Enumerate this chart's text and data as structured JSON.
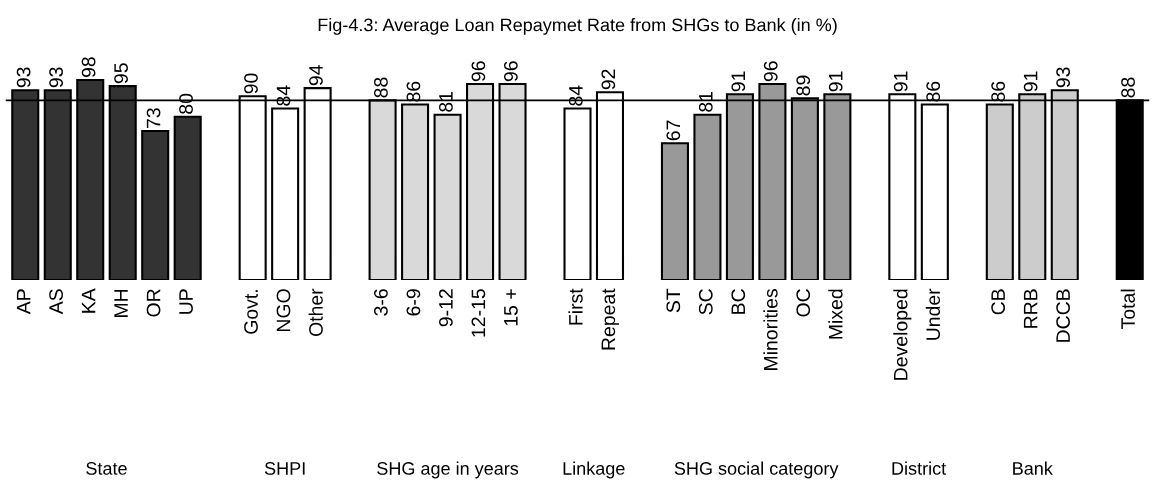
{
  "chart_data": {
    "type": "bar",
    "title": "Fig-4.3: Average Loan Repaymet Rate from SHGs to Bank (in %)",
    "categories": [
      "AP",
      "AS",
      "KA",
      "MH",
      "OR",
      "UP",
      null,
      "Govt.",
      "NGO",
      "Other",
      null,
      "3-6",
      "6-9",
      "9-12",
      "12-15",
      "15 +",
      null,
      "First",
      "Repeat",
      null,
      "ST",
      "SC",
      "BC",
      "Minorities",
      "OC",
      "Mixed",
      null,
      "Developed",
      "Under",
      null,
      "CB",
      "RRB",
      "DCCB",
      null,
      "Total"
    ],
    "values": [
      93,
      93,
      98,
      95,
      73,
      80,
      null,
      90,
      84,
      94,
      null,
      88,
      86,
      81,
      96,
      96,
      null,
      84,
      92,
      null,
      67,
      81,
      91,
      96,
      89,
      91,
      null,
      91,
      86,
      null,
      86,
      91,
      93,
      null,
      88
    ],
    "colors": [
      "#333333",
      "#333333",
      "#333333",
      "#333333",
      "#333333",
      "#333333",
      null,
      "#ffffff",
      "#ffffff",
      "#ffffff",
      null,
      "#d9d9d9",
      "#d9d9d9",
      "#d9d9d9",
      "#d9d9d9",
      "#d9d9d9",
      null,
      "#ffffff",
      "#ffffff",
      null,
      "#999999",
      "#999999",
      "#999999",
      "#999999",
      "#999999",
      "#999999",
      null,
      "#ffffff",
      "#ffffff",
      null,
      "#cccccc",
      "#cccccc",
      "#cccccc",
      null,
      "#000000"
    ],
    "data_labels": true,
    "ref_lines": [
      {
        "axis": "y",
        "value": 88,
        "color": "#000000"
      }
    ],
    "annotations": [
      "State",
      "SHPI",
      "SHG age in years",
      "Linkage",
      "SHG social category",
      "District",
      "Bank"
    ],
    "grid": false,
    "legend": false,
    "tick_labels": "x"
  }
}
